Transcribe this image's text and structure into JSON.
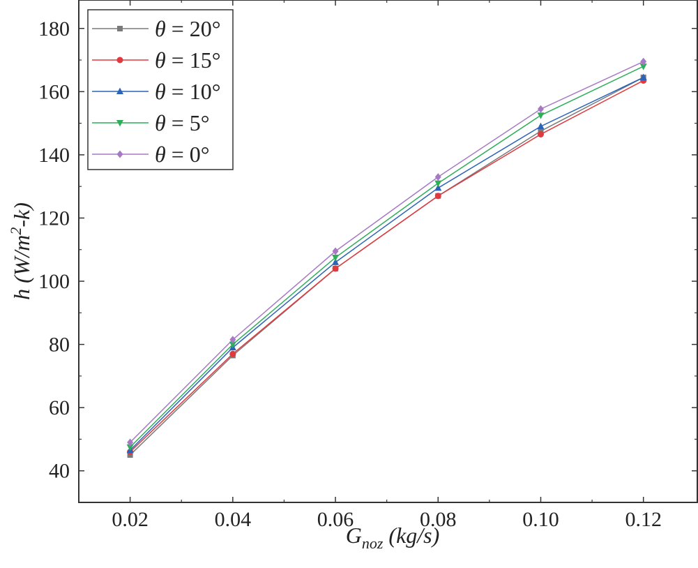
{
  "chart_data": {
    "type": "line",
    "title": "",
    "xlabel": {
      "main": "G",
      "sub": "noz",
      "rest": " (kg/s)"
    },
    "ylabel": {
      "pre": "h (W/m",
      "sup": "2",
      "post": "-k)"
    },
    "xlim": [
      0.01,
      0.1305
    ],
    "ylim": [
      30,
      189
    ],
    "xticks": [
      "0.02",
      "0.04",
      "0.06",
      "0.08",
      "0.10",
      "0.12"
    ],
    "yticks": [
      "40",
      "60",
      "80",
      "100",
      "120",
      "140",
      "160",
      "180"
    ],
    "x": [
      0.02,
      0.04,
      0.06,
      0.08,
      0.1,
      0.12
    ],
    "grid": false,
    "legend_position": "top-left",
    "series": [
      {
        "name": "θ = 20°",
        "symbol": "θ",
        "suffix": " = 20°",
        "marker": "square",
        "color": "#7a7a7a",
        "values": [
          45,
          76.5,
          104,
          127,
          147.5,
          164.5
        ]
      },
      {
        "name": "θ = 15°",
        "symbol": "θ",
        "suffix": " = 15°",
        "marker": "circle",
        "color": "#e0393e",
        "values": [
          46,
          77,
          104,
          127,
          146.5,
          163.5
        ]
      },
      {
        "name": "θ = 10°",
        "symbol": "θ",
        "suffix": " = 10°",
        "marker": "triangle-up",
        "color": "#2a63b8",
        "values": [
          46.5,
          79,
          106,
          129.5,
          149,
          164.5
        ]
      },
      {
        "name": "θ = 5°",
        "symbol": "θ",
        "suffix": " = 5°",
        "marker": "triangle-down",
        "color": "#2fae5a",
        "values": [
          47.5,
          80,
          107.5,
          131,
          152.5,
          168
        ]
      },
      {
        "name": "θ = 0°",
        "symbol": "θ",
        "suffix": " = 0°",
        "marker": "diamond",
        "color": "#a779c4",
        "values": [
          49,
          81.5,
          109.5,
          133,
          154.5,
          169.5
        ]
      }
    ]
  }
}
